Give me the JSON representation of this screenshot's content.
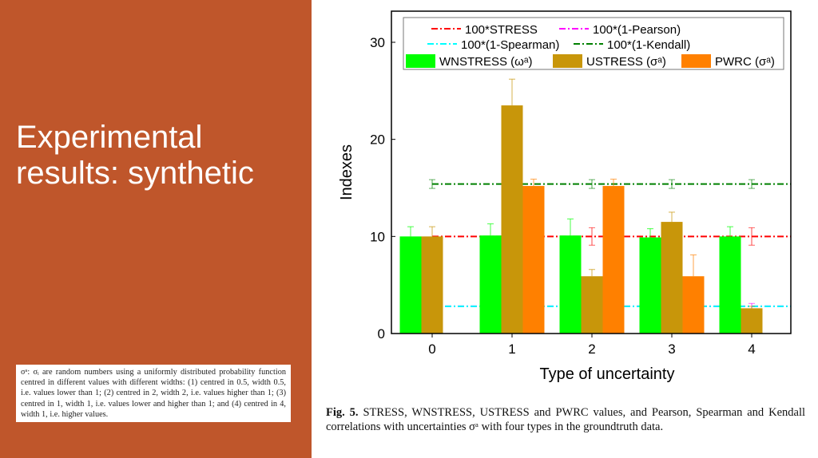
{
  "slide": {
    "title": "Experimental results: synthetic",
    "footnote": "σᵃ: σᵢ are random numbers using a uniformly distributed probability function centred in different values with different widths: (1) centred in 0.5, width 0.5, i.e. values lower than 1; (2) centred in 2, width 2, i.e. values higher than 1; (3) centred in 1, width 1, i.e. values lower and higher than 1; and (4) centred in 4, width 1, i.e. higher values.",
    "caption_label": "Fig. 5.",
    "caption": "STRESS, WNSTRESS, USTRESS and PWRC values, and Pearson, Spearman and Kendall correlations with uncertainties σᵃ with four types in the groundtruth data."
  },
  "chart_data": {
    "type": "bar",
    "xlabel": "Type of uncertainty",
    "ylabel": "Indexes",
    "categories": [
      "0",
      "1",
      "2",
      "3",
      "4"
    ],
    "ylim": [
      0,
      30
    ],
    "yticks": [
      0,
      10,
      20,
      30
    ],
    "series": [
      {
        "name": "WNSTRESS (ωᵃ)",
        "color": "#00FF00",
        "values": [
          10.0,
          10.1,
          10.1,
          9.9,
          10.0
        ],
        "errors": [
          1.0,
          1.2,
          1.7,
          0.9,
          1.0
        ]
      },
      {
        "name": "USTRESS (σᵃ)",
        "color": "#C8960A",
        "values": [
          10.0,
          23.5,
          5.9,
          11.5,
          2.6
        ],
        "errors": [
          1.0,
          2.7,
          0.7,
          1.0,
          0.2
        ]
      },
      {
        "name": "PWRC (σᵃ)",
        "color": "#FF8000",
        "values": [
          0,
          15.2,
          15.2,
          5.9,
          0
        ],
        "errors": [
          0,
          0.7,
          0.7,
          2.2,
          0
        ]
      }
    ],
    "lines": [
      {
        "name": "100*STRESS",
        "color": "#FF0000",
        "value": 10.0,
        "error": 0.9
      },
      {
        "name": "100*(1-Pearson)",
        "color": "#FF00FF",
        "value": 2.8,
        "error": 0.3
      },
      {
        "name": "100*(1-Spearman)",
        "color": "#00FFFF",
        "value": 2.8,
        "error": 0.2
      },
      {
        "name": "100*(1-Kendall)",
        "color": "#008000",
        "value": 15.4,
        "error": 0.45
      }
    ],
    "legend_placement": "top"
  }
}
